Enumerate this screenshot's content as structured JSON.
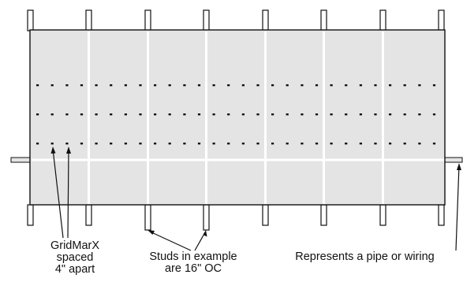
{
  "labels": {
    "gridmarx": [
      "GridMarX",
      "spaced",
      "4\" apart"
    ],
    "studs": [
      "Studs in example",
      "are 16\" OC"
    ],
    "pipe": "Represents a pipe or wiring"
  },
  "colors": {
    "panel_fill": "#e4e4e4",
    "stroke": "#111111",
    "stud_line": "#ffffff",
    "grid_mark": "#111111"
  },
  "diagram": {
    "stud_count": 8,
    "grid_rows": 3,
    "mark_spacing_in": 4,
    "stud_spacing_in": 16
  }
}
